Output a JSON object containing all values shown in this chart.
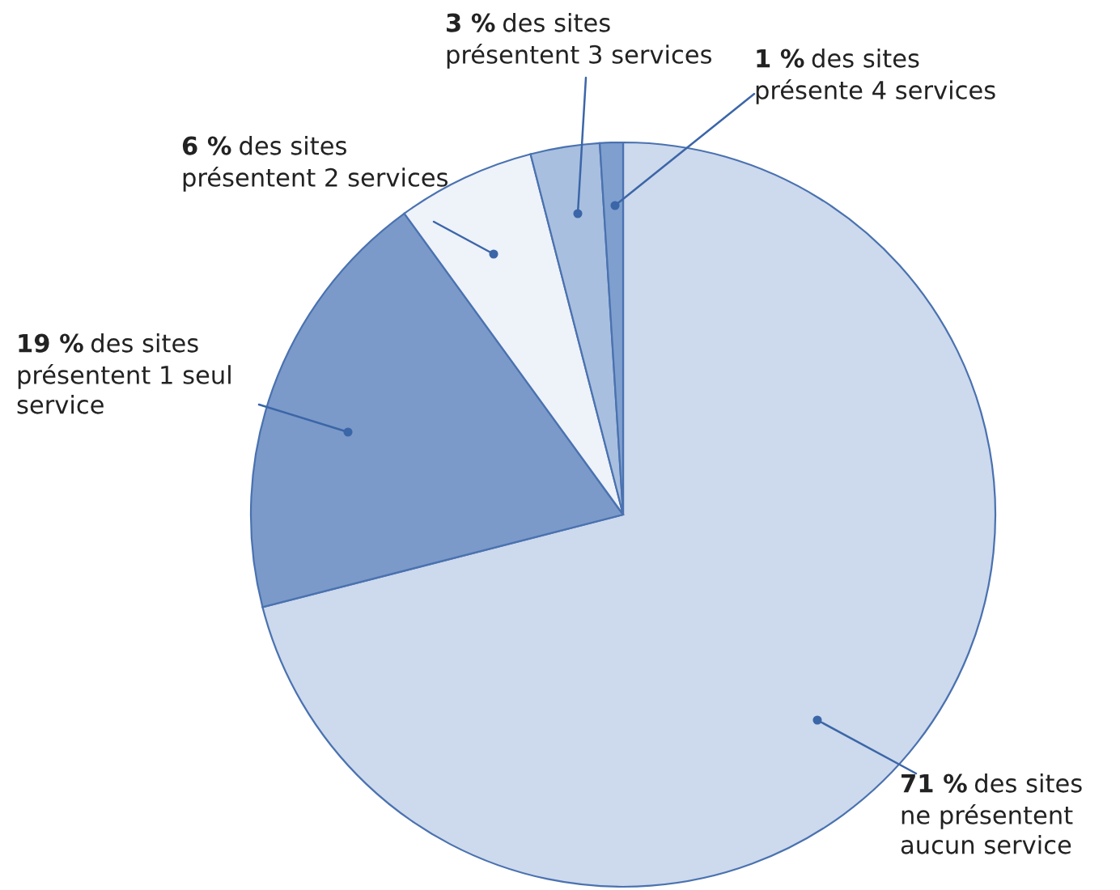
{
  "chart_data": {
    "type": "pie",
    "categories": [
      "des sites\nne présentent\naucun service",
      "des sites\nprésentent 1 seul\nservice",
      "des sites\nprésentent 2 services",
      "des sites\nprésentent 3 services",
      "des sites\nprésente 4 services"
    ],
    "values": [
      71,
      19,
      6,
      3,
      1
    ],
    "value_labels": [
      "71 %",
      "19 %",
      "6 %",
      "3 %",
      "1 %"
    ],
    "colors": [
      "#cdd9ec",
      "#7b9ac9",
      "#eef2f9",
      "#a9bfdf",
      "#7f9fcf"
    ]
  }
}
